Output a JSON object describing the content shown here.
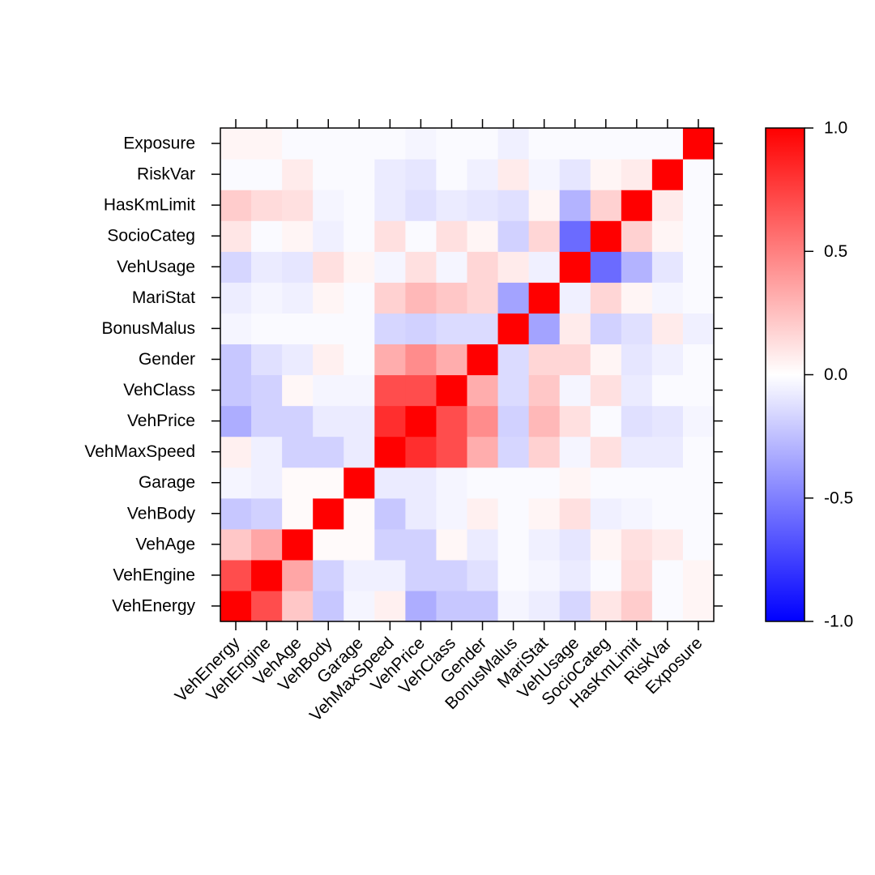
{
  "chart_data": {
    "type": "heatmap",
    "title": "",
    "xlabel": "",
    "ylabel": "",
    "variables": [
      "VehEnergy",
      "VehEngine",
      "VehAge",
      "VehBody",
      "Garage",
      "VehMaxSpeed",
      "VehPrice",
      "VehClass",
      "Gender",
      "BonusMalus",
      "MariStat",
      "VehUsage",
      "SocioCateg",
      "HasKmLimit",
      "RiskVar",
      "Exposure"
    ],
    "color_range": [
      -1,
      1
    ],
    "colorbar_ticks": [
      {
        "value": 1.0,
        "label": "1.0"
      },
      {
        "value": 0.5,
        "label": "0.5"
      },
      {
        "value": 0.0,
        "label": "0.0"
      },
      {
        "value": -0.5,
        "label": "-0.5"
      },
      {
        "value": -1.0,
        "label": "-1.0"
      }
    ],
    "colors": {
      "positive": "#ff0000",
      "negative": "#0000ff",
      "neutral": "#ffffff"
    },
    "matrix": [
      [
        1.0,
        0.7,
        0.22,
        -0.22,
        -0.04,
        0.06,
        -0.32,
        -0.22,
        -0.22,
        -0.04,
        -0.07,
        -0.16,
        0.1,
        0.2,
        -0.02,
        0.04
      ],
      [
        0.7,
        1.0,
        0.35,
        -0.18,
        -0.06,
        -0.06,
        -0.18,
        -0.18,
        -0.12,
        -0.02,
        -0.04,
        -0.08,
        -0.02,
        0.14,
        -0.02,
        0.04
      ],
      [
        0.22,
        0.35,
        1.0,
        0.02,
        0.02,
        -0.18,
        -0.18,
        0.03,
        -0.08,
        -0.02,
        -0.06,
        -0.1,
        0.04,
        0.12,
        0.08,
        -0.02
      ],
      [
        -0.22,
        -0.18,
        0.02,
        1.0,
        0.02,
        -0.18,
        -0.08,
        -0.04,
        0.06,
        -0.02,
        0.04,
        0.12,
        -0.06,
        -0.04,
        -0.02,
        -0.02
      ],
      [
        -0.04,
        -0.06,
        0.02,
        0.02,
        1.0,
        -0.08,
        -0.08,
        -0.04,
        -0.02,
        -0.02,
        -0.02,
        0.04,
        -0.02,
        -0.02,
        -0.02,
        -0.02
      ],
      [
        0.06,
        -0.06,
        -0.18,
        -0.22,
        -0.08,
        1.0,
        0.82,
        0.7,
        0.32,
        -0.16,
        0.18,
        -0.04,
        0.12,
        -0.08,
        -0.08,
        -0.02
      ],
      [
        -0.32,
        -0.18,
        -0.18,
        -0.08,
        -0.08,
        0.82,
        1.0,
        0.7,
        0.45,
        -0.18,
        0.28,
        0.12,
        -0.02,
        -0.12,
        -0.1,
        -0.04
      ],
      [
        -0.22,
        -0.18,
        0.03,
        -0.04,
        -0.04,
        0.7,
        0.7,
        1.0,
        0.32,
        -0.14,
        0.22,
        -0.04,
        0.12,
        -0.08,
        -0.02,
        -0.02
      ],
      [
        -0.22,
        -0.12,
        -0.08,
        0.06,
        -0.02,
        0.32,
        0.45,
        0.32,
        1.0,
        -0.14,
        0.16,
        0.16,
        0.04,
        -0.1,
        -0.06,
        -0.02
      ],
      [
        -0.04,
        -0.02,
        -0.02,
        -0.02,
        -0.02,
        -0.16,
        -0.18,
        -0.14,
        -0.14,
        1.0,
        -0.36,
        0.08,
        -0.18,
        -0.12,
        0.08,
        -0.06
      ],
      [
        -0.07,
        -0.04,
        -0.06,
        0.04,
        -0.02,
        0.18,
        0.28,
        0.22,
        0.16,
        -0.36,
        1.0,
        -0.06,
        0.16,
        0.04,
        -0.04,
        -0.02
      ],
      [
        -0.16,
        -0.08,
        -0.1,
        0.12,
        0.04,
        -0.04,
        0.12,
        -0.04,
        0.16,
        0.08,
        -0.06,
        1.0,
        -0.58,
        -0.3,
        -0.1,
        -0.02
      ],
      [
        0.1,
        -0.02,
        0.04,
        -0.06,
        -0.02,
        0.12,
        -0.02,
        0.12,
        0.04,
        -0.18,
        0.16,
        -0.58,
        1.0,
        0.18,
        0.04,
        -0.02
      ],
      [
        0.2,
        0.14,
        0.12,
        -0.04,
        -0.02,
        -0.08,
        -0.12,
        -0.08,
        -0.1,
        -0.12,
        0.04,
        -0.3,
        0.18,
        1.0,
        0.08,
        -0.02
      ],
      [
        -0.02,
        -0.02,
        0.08,
        -0.02,
        -0.02,
        -0.08,
        -0.1,
        -0.02,
        -0.06,
        0.08,
        -0.04,
        -0.1,
        0.04,
        0.08,
        1.0,
        -0.02
      ],
      [
        0.04,
        0.04,
        -0.02,
        -0.02,
        -0.02,
        -0.02,
        -0.04,
        -0.02,
        -0.02,
        -0.06,
        -0.02,
        -0.02,
        -0.02,
        -0.02,
        -0.02,
        1.0
      ]
    ]
  }
}
